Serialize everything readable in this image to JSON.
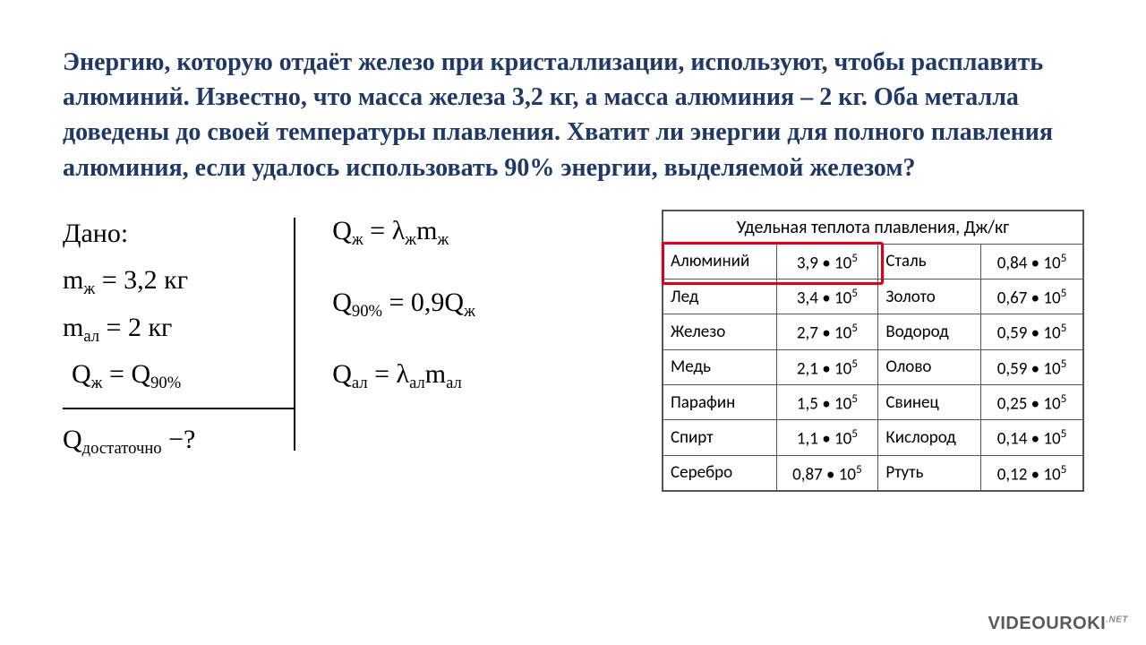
{
  "colors": {
    "title": "#1f3864",
    "text": "#000000",
    "highlight_border": "#d9001b",
    "table_border": "#555555",
    "background": "#ffffff",
    "watermark": "#5a5a5a"
  },
  "problem_text": "Энергию, которую отдаёт железо при кристаллизации, используют, чтобы расплавить алюминий. Известно, что масса железа 3,2 кг, а масса алюминия – 2 кг. Оба металла доведены до своей температуры плавления. Хватит ли энергии для полного плавления алюминия, если удалось использовать  90% энергии, выделяемой железом?",
  "given": {
    "heading": "Дано:",
    "line1_html": "m<span class=\"sub-text\">ж</span> = 3,2 кг",
    "line2_html": "m<span class=\"sub-text\">ал</span> = 2 кг",
    "line3_html": "Q<span class=\"sub-text\">ж</span> = Q<span class=\"sub-text\">90%</span>",
    "find_html": "Q<span class=\"sub-text\">достаточно</span> −?"
  },
  "formulas": {
    "f1_html": "Q<span class=\"sub-text\">ж</span> = λ<span class=\"sub-text\">ж</span>m<span class=\"sub-text\">ж</span>",
    "f2_html": "Q<span class=\"sub-text\">90%</span> = 0,9Q<span class=\"sub-text\">ж</span>",
    "f3_html": "Q<span class=\"sub-text\">ал</span> = λ<span class=\"sub-text\">ал</span>m<span class=\"sub-text\">ал</span>"
  },
  "table": {
    "title": "Удельная теплота плавления, Дж/кг",
    "highlight_row_index": 0,
    "rows": [
      {
        "m1": "Алюминий",
        "v1": "3,9 • 10",
        "e1": "5",
        "m2": "Сталь",
        "v2": "0,84 • 10",
        "e2": "5"
      },
      {
        "m1": "Лед",
        "v1": "3,4 • 10",
        "e1": "5",
        "m2": "Золото",
        "v2": "0,67 • 10",
        "e2": "5"
      },
      {
        "m1": "Железо",
        "v1": "2,7 • 10",
        "e1": "5",
        "m2": "Водород",
        "v2": "0,59 • 10",
        "e2": "5"
      },
      {
        "m1": "Медь",
        "v1": "2,1 • 10",
        "e1": "5",
        "m2": "Олово",
        "v2": "0,59 • 10",
        "e2": "5"
      },
      {
        "m1": "Парафин",
        "v1": "1,5 • 10",
        "e1": "5",
        "m2": "Свинец",
        "v2": "0,25 • 10",
        "e2": "5"
      },
      {
        "m1": "Спирт",
        "v1": "1,1 • 10",
        "e1": "5",
        "m2": "Кислород",
        "v2": "0,14 • 10",
        "e2": "5"
      },
      {
        "m1": "Серебро",
        "v1": "0,87 • 10",
        "e1": "5",
        "m2": "Ртуть",
        "v2": "0,12 • 10",
        "e2": "5"
      }
    ]
  },
  "watermark": {
    "main": "VIDEOUROKI",
    "suffix": ".NET"
  }
}
